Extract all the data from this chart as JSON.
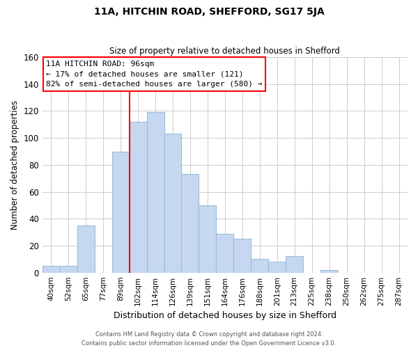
{
  "title": "11A, HITCHIN ROAD, SHEFFORD, SG17 5JA",
  "subtitle": "Size of property relative to detached houses in Shefford",
  "xlabel": "Distribution of detached houses by size in Shefford",
  "ylabel": "Number of detached properties",
  "bar_labels": [
    "40sqm",
    "52sqm",
    "65sqm",
    "77sqm",
    "89sqm",
    "102sqm",
    "114sqm",
    "126sqm",
    "139sqm",
    "151sqm",
    "164sqm",
    "176sqm",
    "188sqm",
    "201sqm",
    "213sqm",
    "225sqm",
    "238sqm",
    "250sqm",
    "262sqm",
    "275sqm",
    "287sqm"
  ],
  "bar_values": [
    5,
    5,
    35,
    0,
    90,
    112,
    119,
    103,
    73,
    50,
    29,
    25,
    10,
    8,
    12,
    0,
    2,
    0,
    0,
    0,
    0
  ],
  "bar_color": "#c5d8f0",
  "bar_edge_color": "#a0bcd8",
  "vline_x": 4.5,
  "annotation_title": "11A HITCHIN ROAD: 96sqm",
  "annotation_line1": "← 17% of detached houses are smaller (121)",
  "annotation_line2": "82% of semi-detached houses are larger (580) →",
  "ylim": [
    0,
    160
  ],
  "yticks": [
    0,
    20,
    40,
    60,
    80,
    100,
    120,
    140,
    160
  ],
  "footer1": "Contains HM Land Registry data © Crown copyright and database right 2024.",
  "footer2": "Contains public sector information licensed under the Open Government Licence v3.0.",
  "background_color": "#ffffff",
  "grid_color": "#cccccc"
}
